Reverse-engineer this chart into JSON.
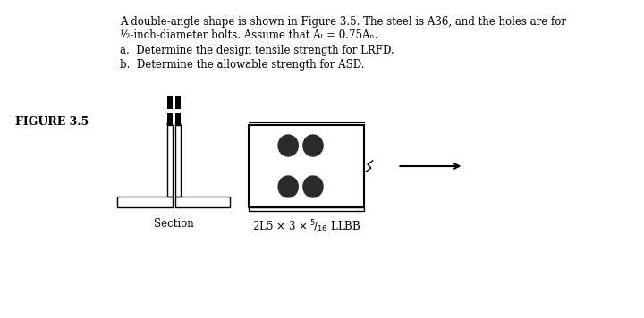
{
  "title_text": "A double-angle shape is shown in Figure 3.5. The steel is A36, and the holes are for\n½-inch-diameter bolts. Assume that             = 0.75   .",
  "line1": "A double-angle shape is shown in Figure 3.5. The steel is A36, and the holes are for",
  "line2": "½-inch-diameter bolts. Assume that Aₜ = 0.75Aₙ.",
  "line3": "a.  Determine the design tensile strength for LRFD.",
  "line4": "b.  Determine the allowable strength for ASD.",
  "figure_label": "FIGURE 3.5",
  "section_label": "Section",
  "section_label2": "2L5 × 3 × ⁵⁄₁₆ LLBB",
  "bg_color": "#ffffff",
  "text_color": "#000000",
  "angle_color": "#000000",
  "bolt_hole_color": "#2a2a2a"
}
